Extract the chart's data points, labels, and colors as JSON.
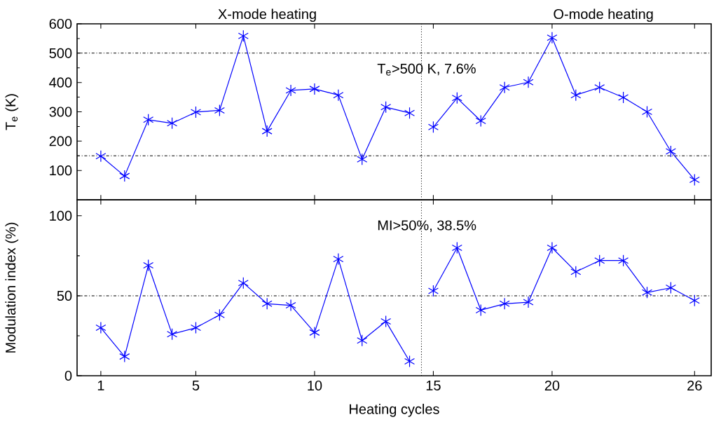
{
  "chart_data": [
    {
      "type": "line",
      "ylabel": "T$_{e}$ (K)",
      "marker": "cross",
      "tick_labels": "y",
      "annotations": [
        "X-mode heating",
        "O-mode heating",
        "T$_{e}$>500 K, 7.6%"
      ],
      "series": [
        {
          "color": "#0000ff",
          "x": [
            1,
            2,
            3,
            4,
            5,
            6,
            7,
            8,
            9,
            10,
            11,
            12,
            13,
            14
          ],
          "values": [
            149,
            81,
            273,
            261,
            299,
            305,
            559,
            234,
            373,
            378,
            357,
            138,
            316,
            296
          ]
        },
        {
          "color": "#0000ff",
          "x": [
            15,
            16,
            17,
            18,
            19,
            20,
            21,
            22,
            23,
            24,
            25,
            26
          ],
          "values": [
            248,
            347,
            269,
            383,
            401,
            553,
            357,
            383,
            349,
            300,
            165,
            68
          ]
        }
      ],
      "xlim": [
        0,
        26.7
      ],
      "xticks": [
        1,
        5,
        10,
        15,
        20,
        26
      ],
      "ylim": [
        0,
        600
      ],
      "yticks": [
        100,
        200,
        300,
        400,
        500,
        600
      ],
      "ref_lines": [
        {
          "axis": "y",
          "value": 500,
          "line_style": "dashdot",
          "color": "#000000"
        },
        {
          "axis": "y",
          "value": 150,
          "line_style": "dashdot",
          "color": "#000000"
        },
        {
          "axis": "x",
          "value": 14.5,
          "line_style": "dotted",
          "color": "#000000"
        }
      ]
    },
    {
      "type": "line",
      "ylabel": "Modulation index (%)",
      "xlabel": "Heating cycles",
      "marker": "cross",
      "annotations": [
        "MI>50%, 38.5%"
      ],
      "series": [
        {
          "color": "#0000ff",
          "x": [
            1,
            2,
            3,
            4,
            5,
            6,
            7,
            8,
            9,
            10,
            11,
            12,
            13,
            14
          ],
          "values": [
            30,
            12,
            69,
            26,
            30,
            38,
            58,
            45,
            44,
            27,
            73,
            22,
            34,
            9
          ]
        },
        {
          "color": "#0000ff",
          "x": [
            15,
            16,
            17,
            18,
            19,
            20,
            21,
            22,
            23,
            24,
            25,
            26
          ],
          "values": [
            53,
            80,
            41,
            45,
            46,
            80,
            65,
            72,
            72,
            52,
            55,
            47
          ]
        }
      ],
      "xlim": [
        0,
        26.7
      ],
      "xticks": [
        1,
        5,
        10,
        15,
        20,
        26
      ],
      "ylim": [
        0,
        110
      ],
      "yticks": [
        0,
        50,
        100
      ],
      "ref_lines": [
        {
          "axis": "y",
          "value": 50,
          "line_style": "dashdot",
          "color": "#000000"
        },
        {
          "axis": "x",
          "value": 14.5,
          "line_style": "dotted",
          "color": "#000000"
        }
      ]
    }
  ]
}
